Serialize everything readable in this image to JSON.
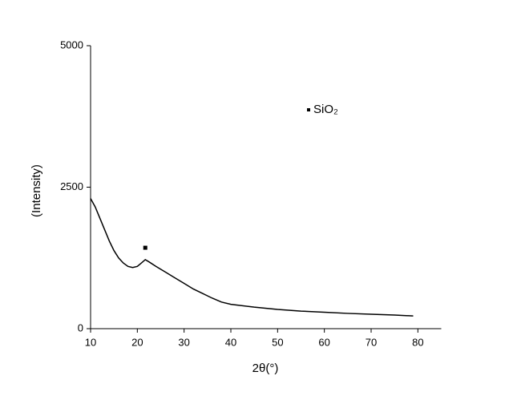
{
  "chart_data": {
    "type": "line",
    "xlabel": "2θ(°)",
    "ylabel": "(Intensity)",
    "xlim": [
      10,
      85
    ],
    "ylim": [
      0,
      5000
    ],
    "xticks": [
      10,
      20,
      30,
      40,
      50,
      60,
      70,
      80
    ],
    "yticks": [
      0,
      2500,
      5000
    ],
    "series": [
      {
        "color": "#000000",
        "x": [
          10,
          11,
          12,
          13,
          14,
          15,
          16,
          17,
          18,
          19,
          20,
          21,
          21.7,
          22.5,
          24,
          26,
          28,
          30,
          32,
          34,
          36,
          38,
          40,
          45,
          50,
          55,
          60,
          65,
          70,
          75,
          79
        ],
        "values": [
          2300,
          2150,
          1950,
          1750,
          1550,
          1380,
          1250,
          1160,
          1100,
          1080,
          1100,
          1170,
          1220,
          1180,
          1100,
          1000,
          900,
          800,
          700,
          620,
          540,
          470,
          430,
          380,
          340,
          310,
          290,
          270,
          255,
          240,
          225
        ]
      }
    ],
    "peaks": {
      "name": "SiO₂",
      "color": "#000000",
      "x": [
        21.7
      ],
      "values": [
        1430
      ]
    }
  }
}
